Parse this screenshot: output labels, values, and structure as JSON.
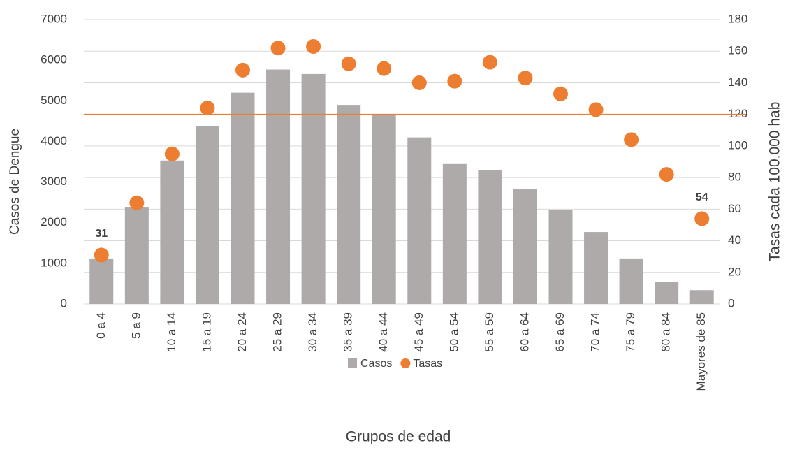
{
  "chart_data": {
    "type": "bar_scatter",
    "x_label": "Grupos de edad",
    "y_label": "Casos de Dengue",
    "y2_label": "Tasas  cada 100.000 hab",
    "categories": [
      "0 a 4",
      "5 a 9",
      "10 a 14",
      "15 a 19",
      "20 a 24",
      "25 a 29",
      "30 a 34",
      "35 a 39",
      "40 a 44",
      "45 a 49",
      "50 a 54",
      "55 a 59",
      "60 a 64",
      "65 a 69",
      "70 a 74",
      "75 a 79",
      "80 a 84",
      "Mayores de 85"
    ],
    "series": [
      {
        "name": "Casos",
        "color": "#aeaaaa",
        "values": [
          1120,
          2390,
          3530,
          4370,
          5200,
          5770,
          5660,
          4900,
          4650,
          4100,
          3460,
          3290,
          2820,
          2310,
          1770,
          1120,
          550,
          340
        ]
      },
      {
        "name": "Tasas",
        "color": "#ed7d31",
        "axis": "y2",
        "values": [
          31,
          64,
          95,
          124,
          148,
          162,
          163,
          152,
          149,
          140,
          141,
          153,
          143,
          133,
          123,
          104,
          82,
          54
        ],
        "value_labels": [
          "31",
          null,
          null,
          null,
          null,
          null,
          null,
          null,
          null,
          null,
          null,
          null,
          null,
          null,
          null,
          null,
          null,
          "54"
        ]
      }
    ],
    "reference_line": {
      "value": 120,
      "axis": "y2",
      "color": "#ed7d31"
    },
    "ylim": [
      0,
      7000
    ],
    "yticks": [
      0,
      1000,
      2000,
      3000,
      4000,
      5000,
      6000,
      7000
    ],
    "y2lim": [
      0,
      180
    ],
    "y2ticks": [
      0,
      20,
      40,
      60,
      80,
      100,
      120,
      140,
      160,
      180
    ],
    "grid": true
  }
}
